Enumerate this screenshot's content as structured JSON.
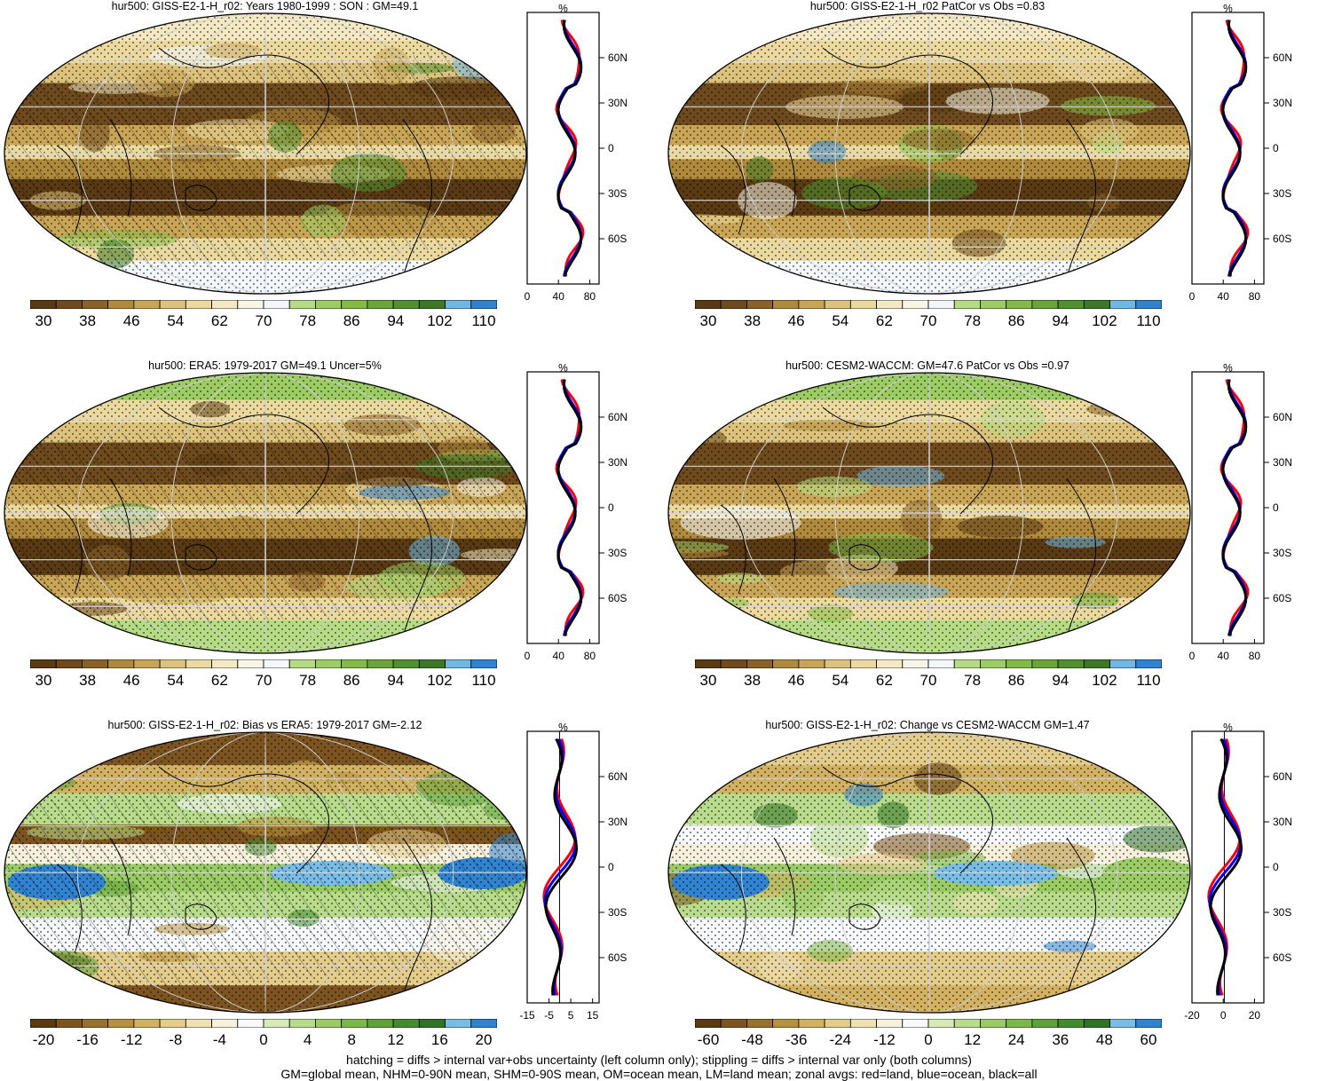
{
  "colors": {
    "row_abs": [
      "#5a3a12",
      "#6e4a1c",
      "#8a6228",
      "#b08a3c",
      "#c9a657",
      "#dcc27c",
      "#ecd99e",
      "#f4e9c2",
      "#f8f4e6",
      "#f3f6fb",
      "#b5dc84",
      "#9ccc63",
      "#84bb47",
      "#6aa53a",
      "#50902f",
      "#3c7825",
      "#6fb8e6",
      "#2f83d0"
    ],
    "diff": [
      "#5a3a12",
      "#7c5420",
      "#9a7030",
      "#b8913e",
      "#d2b262",
      "#e4cc8a",
      "#f0e1b4",
      "#f6f0dc",
      "#f7f9fc",
      "#d7ebb9",
      "#b8dc8b",
      "#9acb64",
      "#7bb849",
      "#5ea23b",
      "#448a2f",
      "#2f7125",
      "#78bde6",
      "#2f83d0"
    ],
    "land": "red",
    "ocean": "blue",
    "all": "black"
  },
  "panels": [
    {
      "title": "hur500: GISS-E2-1-H_r02: Years 1980-1999 : SON : GM=49.1",
      "zonal_unit": "%",
      "lat_labels": [
        "60N",
        "30N",
        "0",
        "30S",
        "60S"
      ],
      "x_ticks": [
        "0",
        "40",
        "80"
      ],
      "cbar_labels": [
        "30",
        "38",
        "46",
        "54",
        "62",
        "70",
        "78",
        "86",
        "94",
        "102",
        "110"
      ],
      "palette": "row_abs"
    },
    {
      "title": "hur500: GISS-E2-1-H_r02 PatCor vs Obs =0.83",
      "zonal_unit": "%",
      "lat_labels": [
        "60N",
        "30N",
        "0",
        "30S",
        "60S"
      ],
      "x_ticks": [
        "0",
        "40",
        "80"
      ],
      "cbar_labels": [
        "30",
        "38",
        "46",
        "54",
        "62",
        "70",
        "78",
        "86",
        "94",
        "102",
        "110"
      ],
      "palette": "row_abs"
    },
    {
      "title": "hur500: ERA5: 1979-2017 GM=49.1 Uncer=5%",
      "zonal_unit": "%",
      "lat_labels": [
        "60N",
        "30N",
        "0",
        "30S",
        "60S"
      ],
      "x_ticks": [
        "0",
        "40",
        "80"
      ],
      "cbar_labels": [
        "30",
        "38",
        "46",
        "54",
        "62",
        "70",
        "78",
        "86",
        "94",
        "102",
        "110"
      ],
      "palette": "row_abs"
    },
    {
      "title": "hur500: CESM2-WACCM: GM=47.6 PatCor vs Obs =0.97",
      "zonal_unit": "%",
      "lat_labels": [
        "60N",
        "30N",
        "0",
        "30S",
        "60S"
      ],
      "x_ticks": [
        "0",
        "40",
        "80"
      ],
      "cbar_labels": [
        "30",
        "38",
        "46",
        "54",
        "62",
        "70",
        "78",
        "86",
        "94",
        "102",
        "110"
      ],
      "palette": "row_abs"
    },
    {
      "title": "hur500: GISS-E2-1-H_r02: Bias vs ERA5: 1979-2017  GM=-2.12",
      "zonal_unit": "%",
      "lat_labels": [
        "60N",
        "30N",
        "0",
        "30S",
        "60S"
      ],
      "x_ticks": [
        "-15",
        "-5",
        "5",
        "15"
      ],
      "cbar_labels": [
        "-20",
        "-16",
        "-12",
        "-8",
        "-4",
        "0",
        "4",
        "8",
        "12",
        "16",
        "20"
      ],
      "palette": "diff"
    },
    {
      "title": "hur500: GISS-E2-1-H_r02: Change vs CESM2-WACCM GM=1.47",
      "zonal_unit": "%",
      "lat_labels": [
        "60N",
        "30N",
        "0",
        "30S",
        "60S"
      ],
      "x_ticks": [
        "-20",
        "0",
        "20"
      ],
      "cbar_labels": [
        "-60",
        "-48",
        "-36",
        "-24",
        "-12",
        "0",
        "12",
        "24",
        "36",
        "48",
        "60"
      ],
      "palette": "diff"
    }
  ],
  "footer": {
    "line1": "hatching = diffs > internal var+obs uncertainty (left column only); stippling = diffs > internal var only (both columns)",
    "line2": "GM=global mean, NHM=0-90N mean, SHM=0-90S mean, OM=ocean mean, LM=land mean; zonal avgs: red=land, blue=ocean, black=all"
  }
}
